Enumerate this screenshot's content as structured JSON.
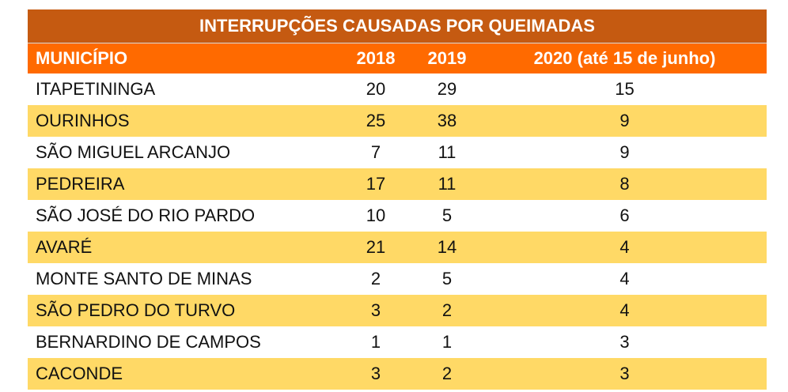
{
  "chart_data": {
    "type": "table",
    "title": "INTERRUPÇÕES CAUSADAS POR QUEIMADAS",
    "columns": [
      "MUNICÍPIO",
      "2018",
      "2019",
      "2020 (até 15 de junho)"
    ],
    "rows": [
      [
        "ITAPETININGA",
        "20",
        "29",
        "15"
      ],
      [
        "OURINHOS",
        "25",
        "38",
        "9"
      ],
      [
        "SÃO MIGUEL ARCANJO",
        "7",
        "11",
        "9"
      ],
      [
        "PEDREIRA",
        "17",
        "11",
        "8"
      ],
      [
        "SÃO JOSÉ DO RIO PARDO",
        "10",
        "5",
        "6"
      ],
      [
        "AVARÉ",
        "21",
        "14",
        "4"
      ],
      [
        "MONTE SANTO DE MINAS",
        "2",
        "5",
        "4"
      ],
      [
        "SÃO PEDRO DO TURVO",
        "3",
        "2",
        "4"
      ],
      [
        "BERNARDINO DE CAMPOS",
        "1",
        "1",
        "3"
      ],
      [
        "CACONDE",
        "3",
        "2",
        "3"
      ]
    ]
  },
  "colors": {
    "title_bg": "#C55A11",
    "header_bg": "#FF6A00",
    "stripe": "#FFD966"
  }
}
